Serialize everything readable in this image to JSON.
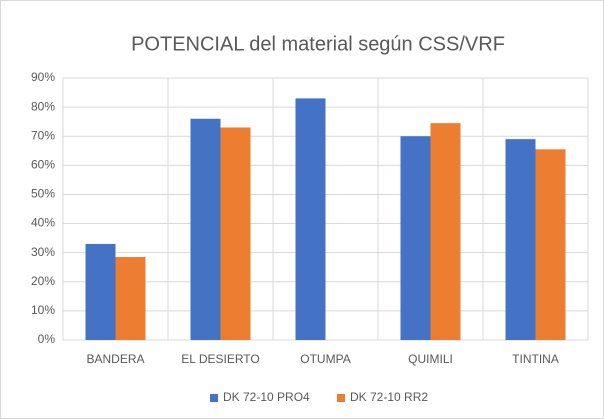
{
  "chart_data": {
    "type": "bar",
    "title": "POTENCIAL del material según CSS/VRF",
    "categories": [
      "BANDERA",
      "EL DESIERTO",
      "OTUMPA",
      "QUIMILI",
      "TINTINA"
    ],
    "series": [
      {
        "name": "DK 72-10 PRO4",
        "color": "#4472c4",
        "values": [
          33,
          76,
          83,
          70,
          69
        ]
      },
      {
        "name": "DK 72-10 RR2",
        "color": "#ed7d31",
        "values": [
          28.5,
          73,
          null,
          74.5,
          65.5
        ]
      }
    ],
    "ylim": [
      0,
      90
    ],
    "yticks": [
      {
        "value": 0,
        "label": "0%"
      },
      {
        "value": 10,
        "label": "10%"
      },
      {
        "value": 20,
        "label": "20%"
      },
      {
        "value": 30,
        "label": "30%"
      },
      {
        "value": 40,
        "label": "40%"
      },
      {
        "value": 50,
        "label": "50%"
      },
      {
        "value": 60,
        "label": "60%"
      },
      {
        "value": 70,
        "label": "70%"
      },
      {
        "value": 80,
        "label": "80%"
      },
      {
        "value": 90,
        "label": "90%"
      }
    ],
    "grid": true,
    "legend": "bottom"
  }
}
